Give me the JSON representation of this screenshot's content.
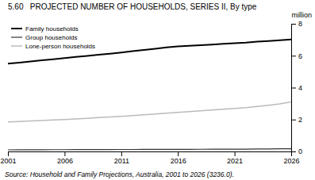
{
  "chart_data": {
    "type": "line",
    "title": "5.60   PROJECTED NUMBER OF HOUSEHOLDS, SERIES II, By type",
    "ylabel": "million",
    "source": "Source: Household and Family Projections, Australia, 2001 to 2026 (3236.0).",
    "x": [
      2001,
      2002,
      2003,
      2004,
      2005,
      2006,
      2007,
      2008,
      2009,
      2010,
      2011,
      2012,
      2013,
      2014,
      2015,
      2016,
      2017,
      2018,
      2019,
      2020,
      2021,
      2022,
      2023,
      2024,
      2025,
      2026
    ],
    "series": [
      {
        "name": "Family households",
        "color": "#000000",
        "values": [
          5.5,
          5.57,
          5.64,
          5.71,
          5.78,
          5.85,
          5.92,
          5.99,
          6.06,
          6.13,
          6.2,
          6.28,
          6.36,
          6.44,
          6.52,
          6.58,
          6.62,
          6.66,
          6.7,
          6.74,
          6.78,
          6.82,
          6.88,
          6.92,
          6.97,
          7.02
        ]
      },
      {
        "name": "Group households",
        "color": "#333333",
        "values": [
          0.1,
          0.105,
          0.107,
          0.109,
          0.111,
          0.113,
          0.115,
          0.117,
          0.119,
          0.121,
          0.123,
          0.125,
          0.127,
          0.129,
          0.131,
          0.133,
          0.135,
          0.137,
          0.139,
          0.141,
          0.143,
          0.145,
          0.155,
          0.16,
          0.165,
          0.17
        ]
      },
      {
        "name": "Lone-person households",
        "color": "#bbbbbb",
        "values": [
          1.85,
          1.88,
          1.91,
          1.94,
          1.97,
          2.0,
          2.04,
          2.08,
          2.12,
          2.16,
          2.2,
          2.25,
          2.3,
          2.35,
          2.4,
          2.45,
          2.5,
          2.55,
          2.6,
          2.65,
          2.7,
          2.75,
          2.82,
          2.9,
          2.98,
          3.1
        ]
      }
    ],
    "xlim": [
      2001,
      2026
    ],
    "xticks": [
      2001,
      2006,
      2011,
      2016,
      2021,
      2026
    ],
    "ylim": [
      0,
      8
    ],
    "yticks": [
      0,
      2,
      4,
      6,
      8
    ],
    "legend": "upper left",
    "grid": false
  }
}
